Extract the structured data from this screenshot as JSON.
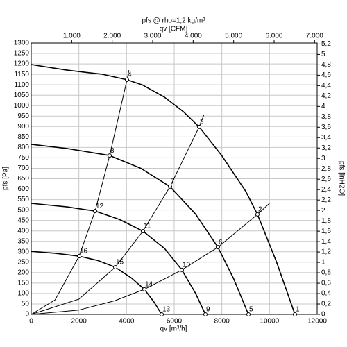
{
  "chart_data": {
    "type": "line",
    "title": "pfs @ rho=1,2 kg/m³",
    "x_label": "qv [m³/h]",
    "x2_label": "qv [CFM]",
    "y_label": "pfs [Pa]",
    "y2_label": "pfs [inH2O]",
    "color": "#000000",
    "grid": true,
    "xlim": [
      0,
      12000
    ],
    "xticks": [
      0,
      2000,
      4000,
      6000,
      8000,
      10000,
      12000
    ],
    "x2lim": [
      0,
      7063
    ],
    "x2ticks": [
      {
        "value": 1000,
        "label": "1.000"
      },
      {
        "value": 2000,
        "label": "2.000"
      },
      {
        "value": 3000,
        "label": "3.000"
      },
      {
        "value": 4000,
        "label": "4.000"
      },
      {
        "value": 5000,
        "label": "5.000"
      },
      {
        "value": 6000,
        "label": "6.000"
      },
      {
        "value": 7000,
        "label": "7.000"
      }
    ],
    "ylim": [
      0,
      1300
    ],
    "yticks": [
      0,
      50,
      100,
      150,
      200,
      250,
      300,
      350,
      400,
      450,
      500,
      550,
      600,
      650,
      700,
      750,
      800,
      850,
      900,
      950,
      1000,
      1050,
      1100,
      1150,
      1200,
      1250,
      1300
    ],
    "y2lim": [
      0,
      5.219
    ],
    "y2ticks": [
      0,
      {
        "value": 0.2,
        "label": "0,2"
      },
      {
        "value": 0.4,
        "label": "0,4"
      },
      {
        "value": 0.6,
        "label": "0,6"
      },
      {
        "value": 0.8,
        "label": "0,8"
      },
      1,
      {
        "value": 1.2,
        "label": "1,2"
      },
      {
        "value": 1.4,
        "label": "1,4"
      },
      {
        "value": 1.6,
        "label": "1,6"
      },
      {
        "value": 1.8,
        "label": "1,8"
      },
      2,
      {
        "value": 2.2,
        "label": "2,2"
      },
      {
        "value": 2.4,
        "label": "2,4"
      },
      {
        "value": 2.6,
        "label": "2,6"
      },
      {
        "value": 2.8,
        "label": "2,8"
      },
      3,
      {
        "value": 3.2,
        "label": "3,2"
      },
      {
        "value": 3.4,
        "label": "3,4"
      },
      {
        "value": 3.6,
        "label": "3,6"
      },
      {
        "value": 3.8,
        "label": "3,8"
      },
      4,
      {
        "value": 4.2,
        "label": "4,2"
      },
      {
        "value": 4.4,
        "label": "4,4"
      },
      {
        "value": 4.6,
        "label": "4,6"
      },
      {
        "value": 4.8,
        "label": "4,8"
      },
      5,
      {
        "value": 5.2,
        "label": "5,2"
      }
    ],
    "series": [
      {
        "x": [
          0,
          1500,
          3000,
          4019,
          4660,
          5600,
          6400,
          7049,
          8000,
          9000,
          9495,
          10300,
          11068
        ],
        "values": [
          1197,
          1170,
          1150,
          1124,
          1100,
          1040,
          970,
          898,
          760,
          590,
          479,
          250,
          0
        ]
      },
      {
        "x": [
          0,
          1500,
          3291,
          4600,
          5825,
          6900,
          7835,
          8500,
          9117
        ],
        "values": [
          815,
          795,
          761,
          700,
          612,
          480,
          322,
          170,
          0
        ]
      },
      {
        "x": [
          0,
          1500,
          2680,
          3700,
          4689,
          5600,
          6320,
          6900,
          7311
        ],
        "values": [
          532,
          515,
          495,
          455,
          399,
          315,
          213,
          100,
          0
        ]
      },
      {
        "x": [
          0,
          1000,
          2010,
          2800,
          3524,
          4200,
          4748,
          5150,
          5476
        ],
        "values": [
          302,
          293,
          279,
          258,
          226,
          175,
          120,
          60,
          0
        ]
      },
      {
        "x": [
          0,
          1000,
          2010,
          2680,
          3291,
          4019,
          4100
        ],
        "values": [
          0,
          69,
          279,
          495,
          761,
          1124,
          1170
        ]
      },
      {
        "x": [
          0,
          2000,
          3524,
          4689,
          5825,
          7049,
          7250
        ],
        "values": [
          0,
          73,
          226,
          399,
          612,
          898,
          957
        ]
      },
      {
        "x": [
          0,
          2000,
          3500,
          4748,
          6320,
          7835,
          9495,
          10000
        ],
        "values": [
          0,
          21,
          65,
          120,
          213,
          322,
          479,
          532
        ]
      }
    ],
    "points": {
      "labels": [
        "1",
        "2",
        "3",
        "4",
        "5",
        "6",
        "7",
        "8",
        "9",
        "10",
        "11",
        "12",
        "13",
        "14",
        "15",
        "16"
      ],
      "x": [
        11068,
        9495,
        7049,
        4019,
        9117,
        7835,
        5825,
        3291,
        7311,
        6320,
        4689,
        2680,
        5476,
        4748,
        3524,
        2010
      ],
      "values": [
        0,
        479,
        898,
        1124,
        0,
        322,
        612,
        761,
        0,
        213,
        399,
        495,
        0,
        120,
        226,
        279
      ]
    }
  }
}
